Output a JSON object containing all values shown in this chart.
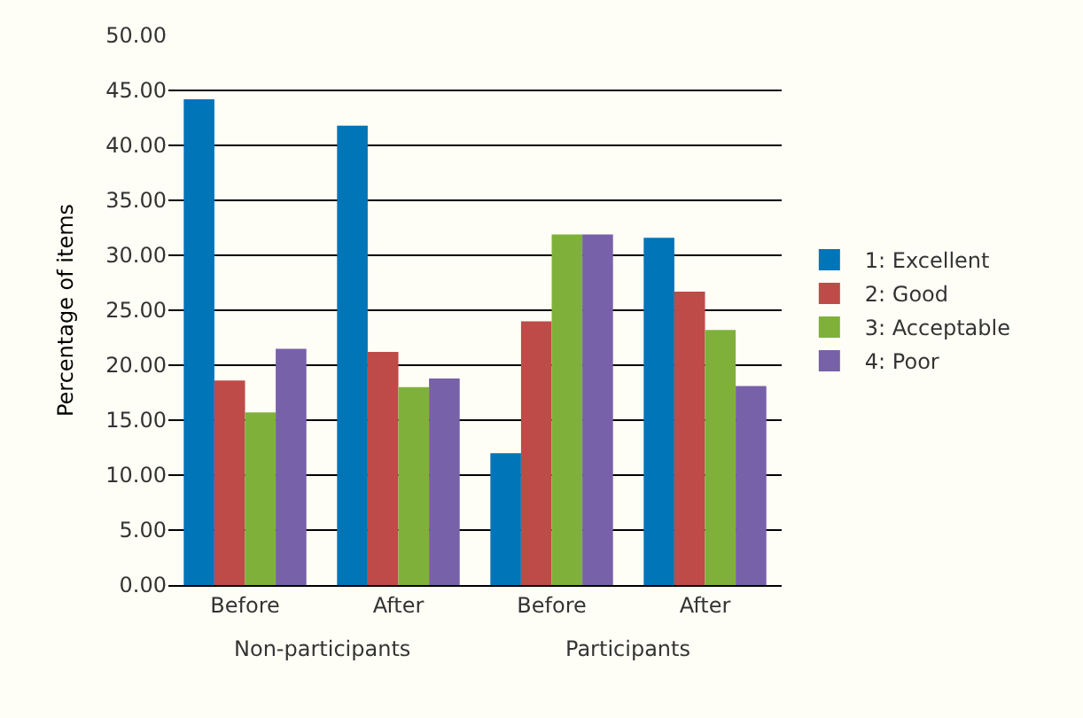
{
  "chart_data": {
    "type": "bar",
    "ylabel": "Percentage of items",
    "categories": [
      "Before",
      "After",
      "Before",
      "After"
    ],
    "series": [
      {
        "name": "1: Excellent",
        "color": "#0075b8",
        "values": [
          44.2,
          41.8,
          12.0,
          31.6
        ]
      },
      {
        "name": "2: Good",
        "color": "#be4b48",
        "values": [
          18.6,
          21.2,
          24.0,
          26.7
        ]
      },
      {
        "name": "3: Acceptable",
        "color": "#7fb13a",
        "values": [
          15.7,
          18.0,
          31.9,
          23.2
        ]
      },
      {
        "name": "4: Poor",
        "color": "#7761a9",
        "values": [
          21.5,
          18.8,
          31.9,
          18.1
        ]
      }
    ],
    "ylim": [
      0,
      50
    ],
    "yticks": [
      {
        "value": 0,
        "label": "0.00"
      },
      {
        "value": 5,
        "label": "5.00"
      },
      {
        "value": 10,
        "label": "10.00"
      },
      {
        "value": 15,
        "label": "15.00"
      },
      {
        "value": 20,
        "label": "20.00"
      },
      {
        "value": 25,
        "label": "25.00"
      },
      {
        "value": 30,
        "label": "30.00"
      },
      {
        "value": 35,
        "label": "35.00"
      },
      {
        "value": 40,
        "label": "40.00"
      },
      {
        "value": 45,
        "label": "45.00"
      },
      {
        "value": 50,
        "label": "50.00"
      }
    ],
    "annotations": [
      "Non-participants",
      "Participants"
    ],
    "grid": "y",
    "legend": "right"
  }
}
